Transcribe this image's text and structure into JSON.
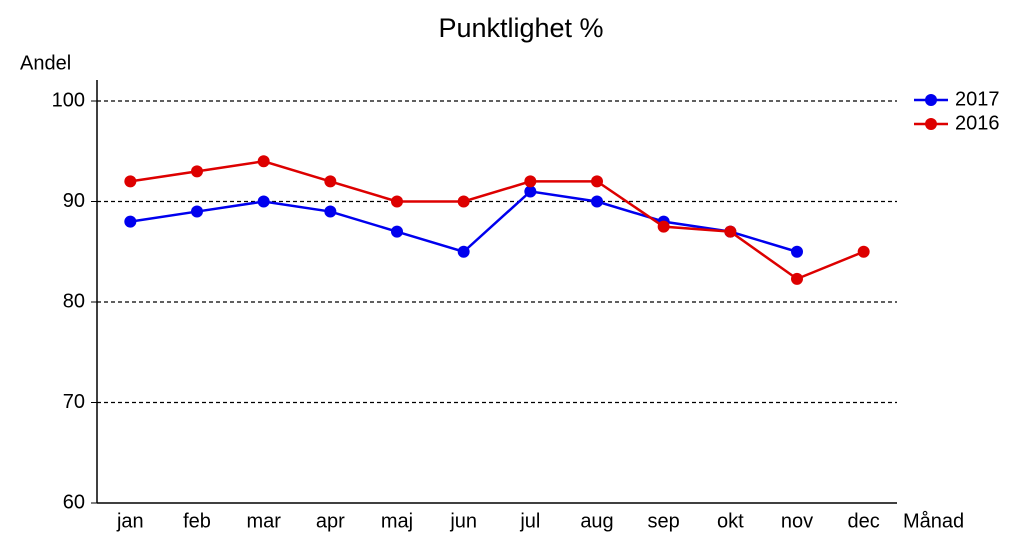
{
  "chart_data": {
    "type": "line",
    "title": "Punktlighet %",
    "y_label": "Andel",
    "x_label": "Månad",
    "categories": [
      "jan",
      "feb",
      "mar",
      "apr",
      "maj",
      "jun",
      "jul",
      "aug",
      "sep",
      "okt",
      "nov",
      "dec"
    ],
    "series": [
      {
        "name": "2017",
        "color": "#0000ee",
        "values": [
          88,
          89,
          90,
          89,
          87,
          85,
          91,
          90,
          88,
          87,
          85,
          null
        ]
      },
      {
        "name": "2016",
        "color": "#dd0000",
        "values": [
          92,
          93,
          94,
          92,
          90,
          90,
          92,
          92,
          87.5,
          87,
          82.3,
          85
        ]
      }
    ],
    "ylim": [
      60,
      100
    ],
    "yticks": [
      60,
      70,
      80,
      90,
      100
    ],
    "grid": true,
    "legend": "top-right"
  }
}
